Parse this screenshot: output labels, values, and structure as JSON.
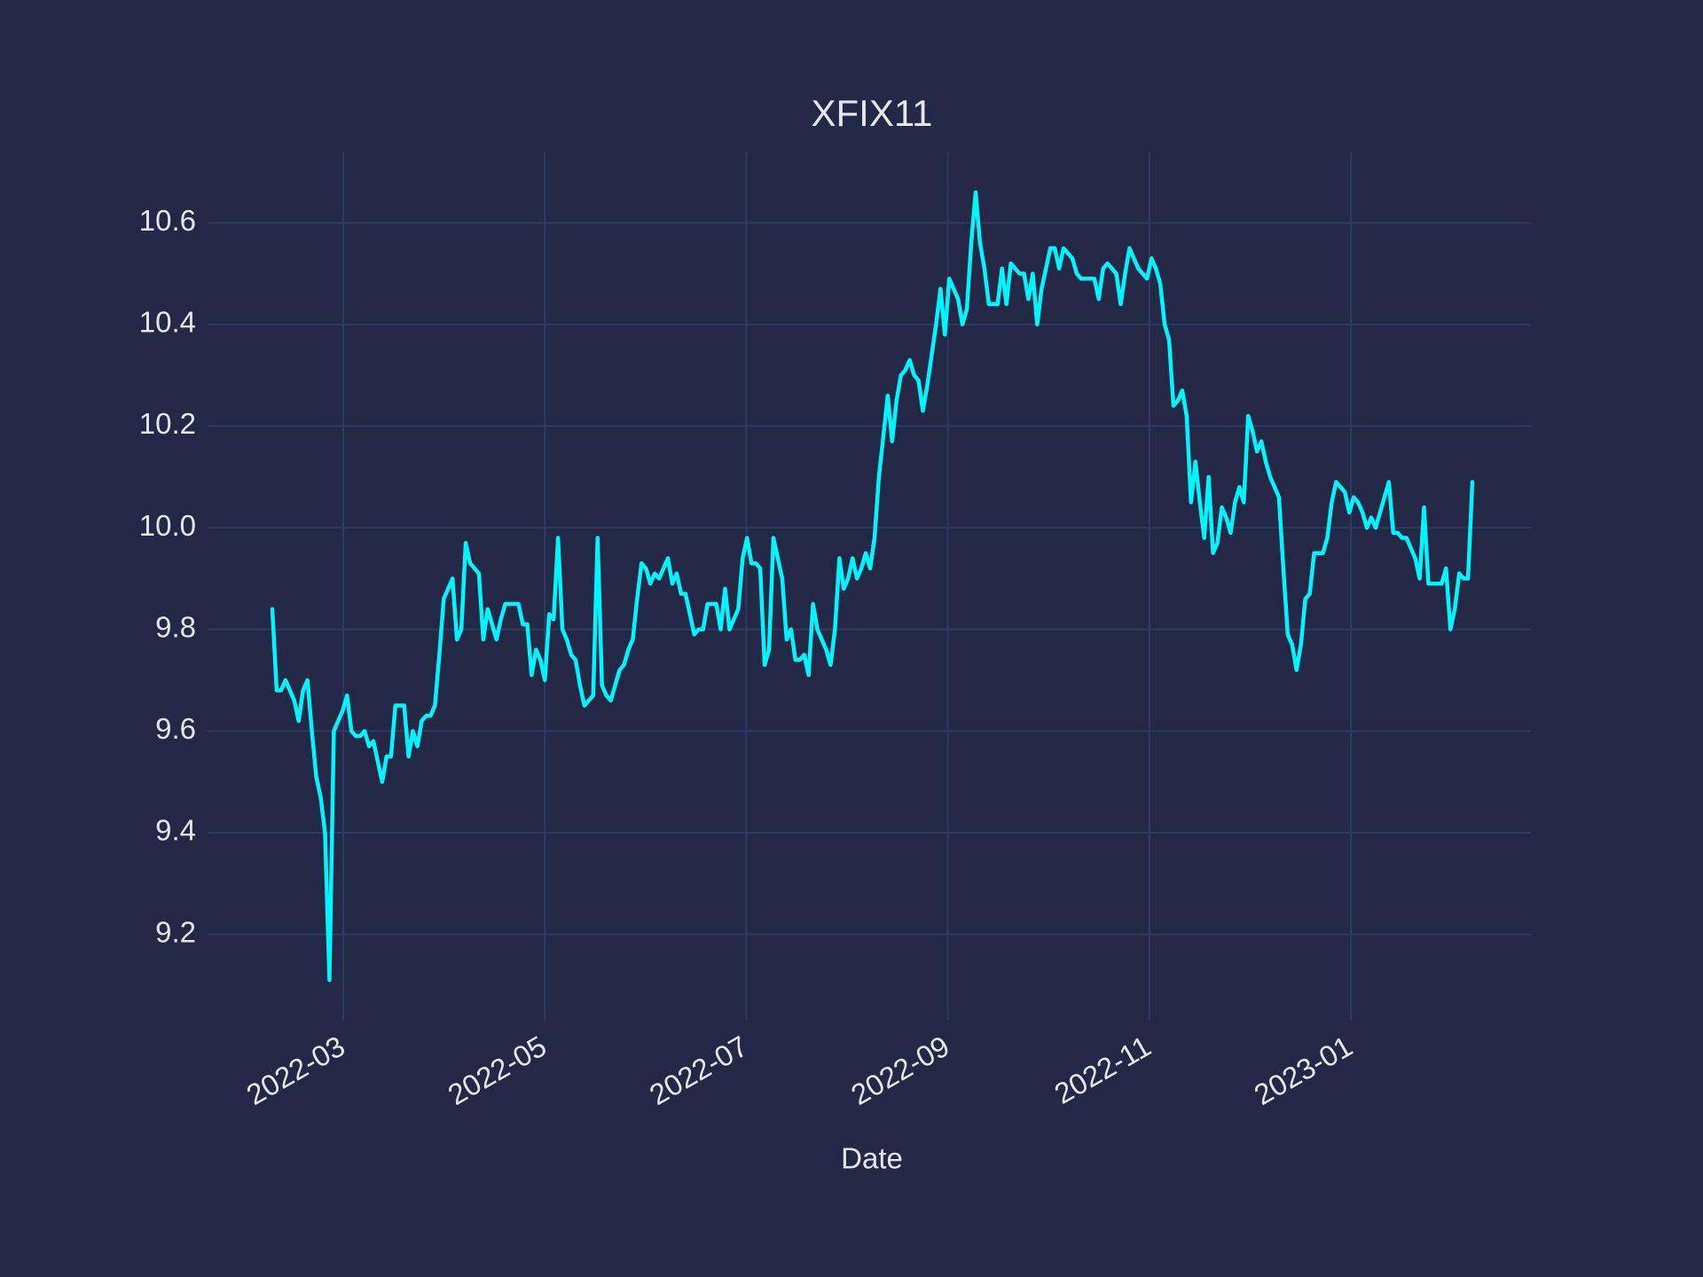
{
  "chart_data": {
    "type": "line",
    "title": "XFIX11",
    "xlabel": "Date",
    "xticks": [
      "2022-03",
      "2022-05",
      "2022-07",
      "2022-09",
      "2022-11",
      "2023-01"
    ],
    "ylim": [
      9.03,
      10.74
    ],
    "yticks": [
      9.2,
      9.4,
      9.6,
      9.8,
      {
        "value": 10,
        "label": "10.0"
      },
      10.2,
      10.4,
      10.6
    ],
    "grid": true,
    "color": "#00f5ff",
    "values": [
      9.84,
      9.68,
      9.68,
      9.7,
      9.68,
      9.66,
      9.62,
      9.68,
      9.7,
      9.6,
      9.51,
      9.47,
      9.4,
      9.11,
      9.6,
      9.62,
      9.64,
      9.67,
      9.6,
      9.59,
      9.59,
      9.6,
      9.57,
      9.58,
      9.54,
      9.5,
      9.55,
      9.55,
      9.65,
      9.65,
      9.65,
      9.55,
      9.6,
      9.57,
      9.62,
      9.63,
      9.63,
      9.65,
      9.75,
      9.86,
      9.88,
      9.9,
      9.78,
      9.8,
      9.97,
      9.93,
      9.92,
      9.91,
      9.78,
      9.84,
      9.81,
      9.78,
      9.82,
      9.85,
      9.85,
      9.85,
      9.85,
      9.81,
      9.81,
      9.71,
      9.76,
      9.74,
      9.7,
      9.83,
      9.82,
      9.98,
      9.8,
      9.78,
      9.75,
      9.74,
      9.69,
      9.65,
      9.66,
      9.67,
      9.98,
      9.69,
      9.67,
      9.66,
      9.69,
      9.72,
      9.73,
      9.76,
      9.78,
      9.86,
      9.93,
      9.92,
      9.89,
      9.91,
      9.9,
      9.92,
      9.94,
      9.89,
      9.91,
      9.87,
      9.87,
      9.83,
      9.79,
      9.8,
      9.8,
      9.85,
      9.85,
      9.85,
      9.8,
      9.88,
      9.8,
      9.82,
      9.84,
      9.94,
      9.98,
      9.93,
      9.93,
      9.92,
      9.73,
      9.76,
      9.98,
      9.94,
      9.9,
      9.78,
      9.8,
      9.74,
      9.74,
      9.75,
      9.71,
      9.85,
      9.8,
      9.78,
      9.76,
      9.73,
      9.8,
      9.94,
      9.88,
      9.9,
      9.94,
      9.9,
      9.92,
      9.95,
      9.92,
      9.98,
      10.1,
      10.18,
      10.26,
      10.17,
      10.25,
      10.3,
      10.31,
      10.33,
      10.3,
      10.29,
      10.23,
      10.28,
      10.34,
      10.4,
      10.47,
      10.38,
      10.49,
      10.47,
      10.45,
      10.4,
      10.43,
      10.56,
      10.66,
      10.56,
      10.51,
      10.44,
      10.44,
      10.44,
      10.51,
      10.44,
      10.52,
      10.51,
      10.5,
      10.5,
      10.45,
      10.5,
      10.4,
      10.47,
      10.51,
      10.55,
      10.55,
      10.51,
      10.55,
      10.54,
      10.53,
      10.5,
      10.49,
      10.49,
      10.49,
      10.49,
      10.45,
      10.51,
      10.52,
      10.51,
      10.5,
      10.44,
      10.5,
      10.55,
      10.53,
      10.51,
      10.5,
      10.49,
      10.53,
      10.51,
      10.48,
      10.4,
      10.37,
      10.24,
      10.25,
      10.27,
      10.22,
      10.05,
      10.13,
      10.05,
      9.98,
      10.1,
      9.95,
      9.97,
      10.04,
      10.02,
      9.99,
      10.05,
      10.08,
      10.05,
      10.22,
      10.19,
      10.15,
      10.17,
      10.13,
      10.1,
      10.08,
      10.06,
      9.92,
      9.79,
      9.77,
      9.72,
      9.77,
      9.86,
      9.87,
      9.95,
      9.95,
      9.95,
      9.98,
      10.05,
      10.09,
      10.08,
      10.07,
      10.03,
      10.06,
      10.05,
      10.03,
      10.0,
      10.02,
      10.0,
      10.03,
      10.06,
      10.09,
      9.99,
      9.99,
      9.98,
      9.98,
      9.96,
      9.94,
      9.9,
      10.04,
      9.89,
      9.89,
      9.89,
      9.89,
      9.92,
      9.8,
      9.84,
      9.91,
      9.9,
      9.9,
      10.09
    ]
  }
}
